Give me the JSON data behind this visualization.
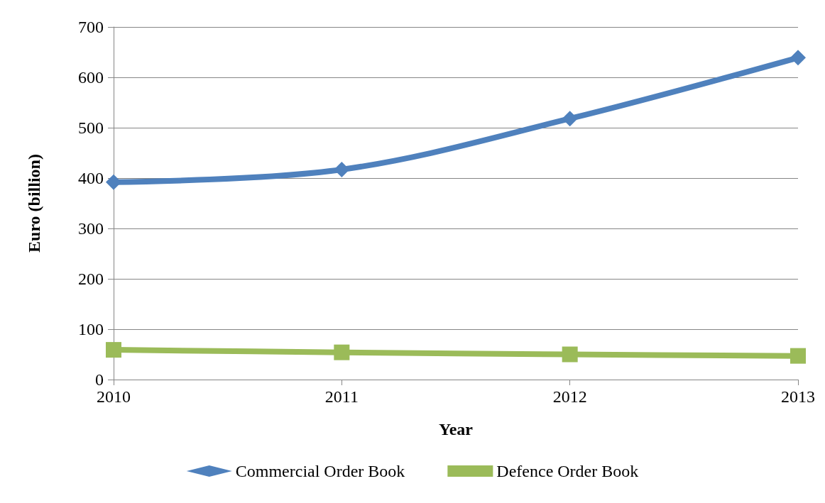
{
  "chart_data": {
    "type": "line",
    "xlabel": "Year",
    "ylabel": "Euro (billion)",
    "categories": [
      "2010",
      "2011",
      "2012",
      "2013"
    ],
    "series": [
      {
        "name": "Commercial Order Book",
        "color": "#4f81bd",
        "marker": "diamond",
        "values": [
          392,
          417,
          518,
          639
        ]
      },
      {
        "name": "Defence Order Book",
        "color": "#9bbb59",
        "marker": "square",
        "values": [
          59,
          54,
          50,
          47
        ]
      }
    ],
    "ylim": [
      0,
      700
    ],
    "yticks": [
      0,
      100,
      200,
      300,
      400,
      500,
      600,
      700
    ],
    "grid": "y",
    "legend": "bottom",
    "line_style": "solid"
  }
}
